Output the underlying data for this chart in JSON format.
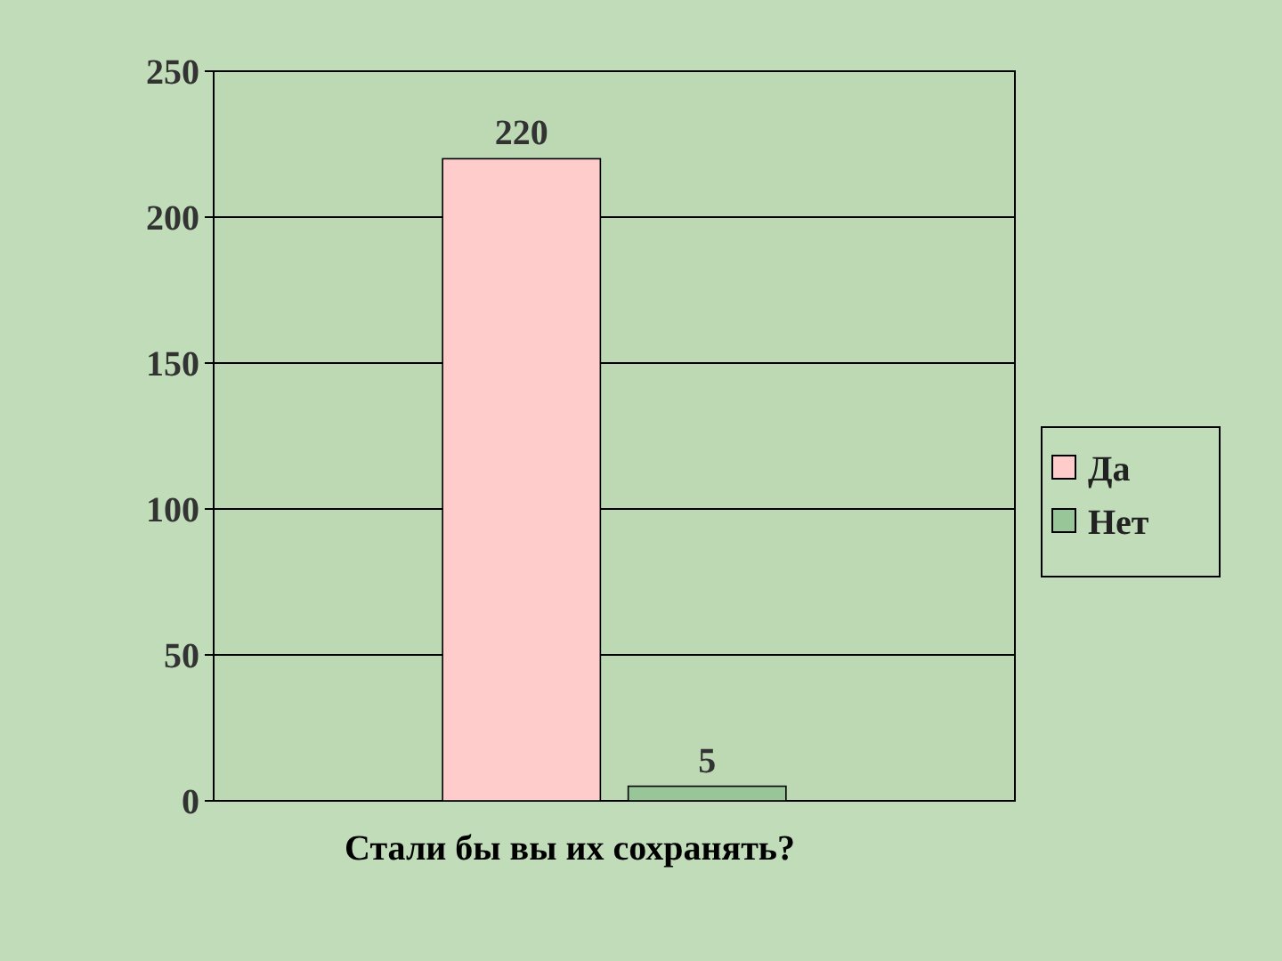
{
  "chart_data": {
    "type": "bar",
    "categories": [
      null
    ],
    "xlabel": "Стали бы вы их сохранять?",
    "series": [
      {
        "name": "Да",
        "color": "#ffcccc",
        "values": [
          220
        ]
      },
      {
        "name": "Нет",
        "color": "#99c699",
        "values": [
          5
        ]
      }
    ],
    "ylim": [
      0,
      250
    ],
    "yticks": [
      0,
      50,
      100,
      150,
      200,
      250
    ],
    "grid": "y",
    "legend": "right",
    "data_labels": true
  }
}
